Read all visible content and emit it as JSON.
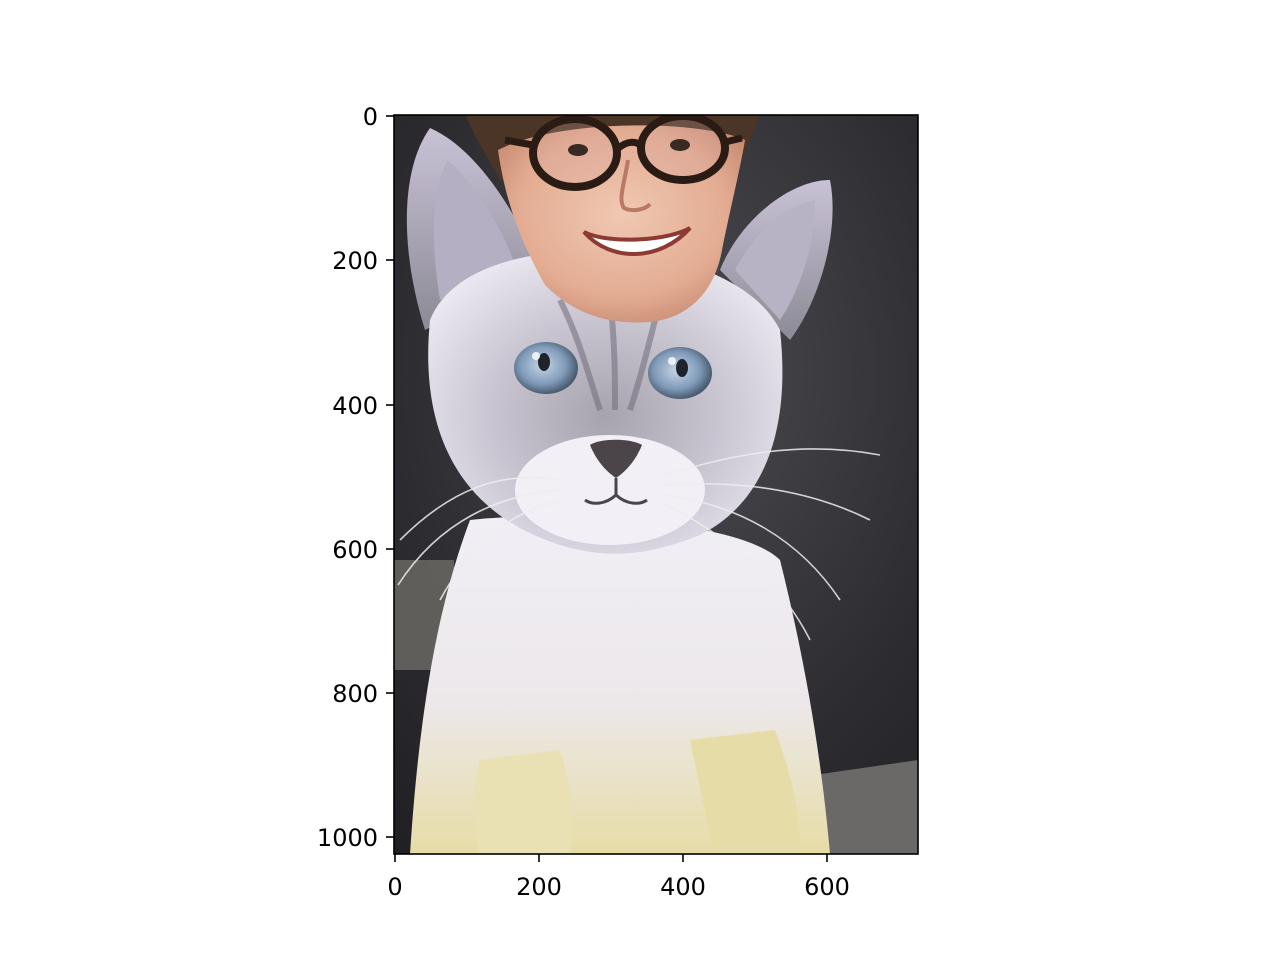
{
  "figure": {
    "type": "image",
    "x_ticks": [
      "0",
      "200",
      "400",
      "600"
    ],
    "y_ticks": [
      "0",
      "200",
      "400",
      "600",
      "800",
      "1000"
    ],
    "xlim": [
      0,
      725
    ],
    "ylim": [
      1024,
      0
    ]
  },
  "colors": {
    "frame": "#000000",
    "background": "#ffffff",
    "photo_dark_bg": "#2f2f33",
    "fur_light": "#eae7f0",
    "fur_grey": "#8c8a96",
    "fur_cream": "#e8deaa",
    "eye_blue": "#7f9ab8",
    "skin": "#e9b9a0",
    "hair": "#4a3526"
  },
  "image_description": {
    "subject": "cat-photo",
    "overlay": "face-cutout"
  }
}
